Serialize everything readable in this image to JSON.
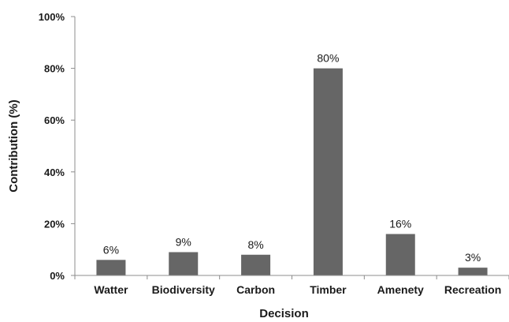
{
  "chart_data": {
    "type": "bar",
    "title": "",
    "xlabel": "Decision",
    "ylabel": "Contribution (%)",
    "categories": [
      "Watter",
      "Biodiversity",
      "Carbon",
      "Timber",
      "Amenety",
      "Recreation"
    ],
    "values": [
      6,
      9,
      8,
      80,
      16,
      3
    ],
    "data_labels": [
      "6%",
      "9%",
      "8%",
      "80%",
      "16%",
      "3%"
    ],
    "ylim": [
      0,
      100
    ],
    "yticks": [
      0,
      20,
      40,
      60,
      80,
      100
    ],
    "ytick_labels": [
      "0%",
      "20%",
      "40%",
      "60%",
      "80%",
      "100%"
    ],
    "grid": false,
    "legend": "none",
    "bar_color": "#666666"
  }
}
